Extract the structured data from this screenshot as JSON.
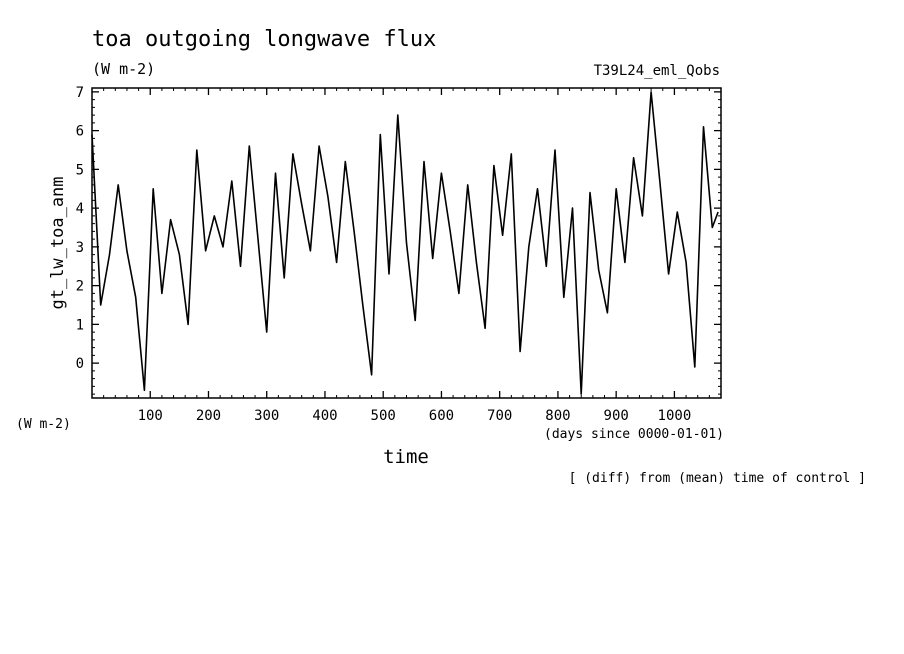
{
  "chart_data": {
    "type": "line",
    "title": "toa outgoing longwave flux",
    "units": "(W m-2)",
    "experiment": "T39L24_eml_Qobs",
    "ylabel": "gt_lw_toa_anm",
    "yunits": "(W m-2)",
    "xlabel": "time",
    "xunits": "(days since 0000-01-01)",
    "note": "[ (diff) from (mean) time of control ]",
    "xlim": [
      0,
      1080
    ],
    "ylim": [
      -0.9,
      7.1
    ],
    "xticks": [
      100,
      200,
      300,
      400,
      500,
      600,
      700,
      800,
      900,
      1000
    ],
    "yticks": [
      0,
      1,
      2,
      3,
      4,
      5,
      6,
      7
    ],
    "grid": false,
    "series": [
      {
        "x": [
          0,
          15,
          30,
          45,
          60,
          75,
          90,
          105,
          120,
          135,
          150,
          165,
          180,
          195,
          210,
          225,
          240,
          255,
          270,
          285,
          300,
          315,
          330,
          345,
          360,
          375,
          390,
          405,
          420,
          435,
          450,
          465,
          480,
          495,
          510,
          525,
          540,
          555,
          570,
          585,
          600,
          615,
          630,
          645,
          660,
          675,
          690,
          705,
          720,
          735,
          750,
          765,
          780,
          795,
          810,
          825,
          840,
          855,
          870,
          885,
          900,
          915,
          930,
          945,
          960,
          975,
          990,
          1005,
          1020,
          1035,
          1050,
          1065,
          1075
        ],
        "y": [
          5.9,
          1.5,
          2.8,
          4.6,
          2.9,
          1.7,
          -0.7,
          4.5,
          1.8,
          3.7,
          2.8,
          1.0,
          5.5,
          2.9,
          3.8,
          3.0,
          4.7,
          2.5,
          5.6,
          3.2,
          0.8,
          4.9,
          2.2,
          5.4,
          4.1,
          2.9,
          5.6,
          4.3,
          2.6,
          5.2,
          3.4,
          1.5,
          -0.3,
          5.9,
          2.3,
          6.4,
          3.1,
          1.1,
          5.2,
          2.7,
          4.9,
          3.4,
          1.8,
          4.6,
          2.6,
          0.9,
          5.1,
          3.3,
          5.4,
          0.3,
          3.0,
          4.5,
          2.5,
          5.5,
          1.7,
          4.0,
          -0.8,
          4.4,
          2.4,
          1.3,
          4.5,
          2.6,
          5.3,
          3.8,
          7.0,
          4.7,
          2.3,
          3.9,
          2.6,
          -0.1,
          6.1,
          3.5,
          3.9
        ]
      }
    ]
  }
}
